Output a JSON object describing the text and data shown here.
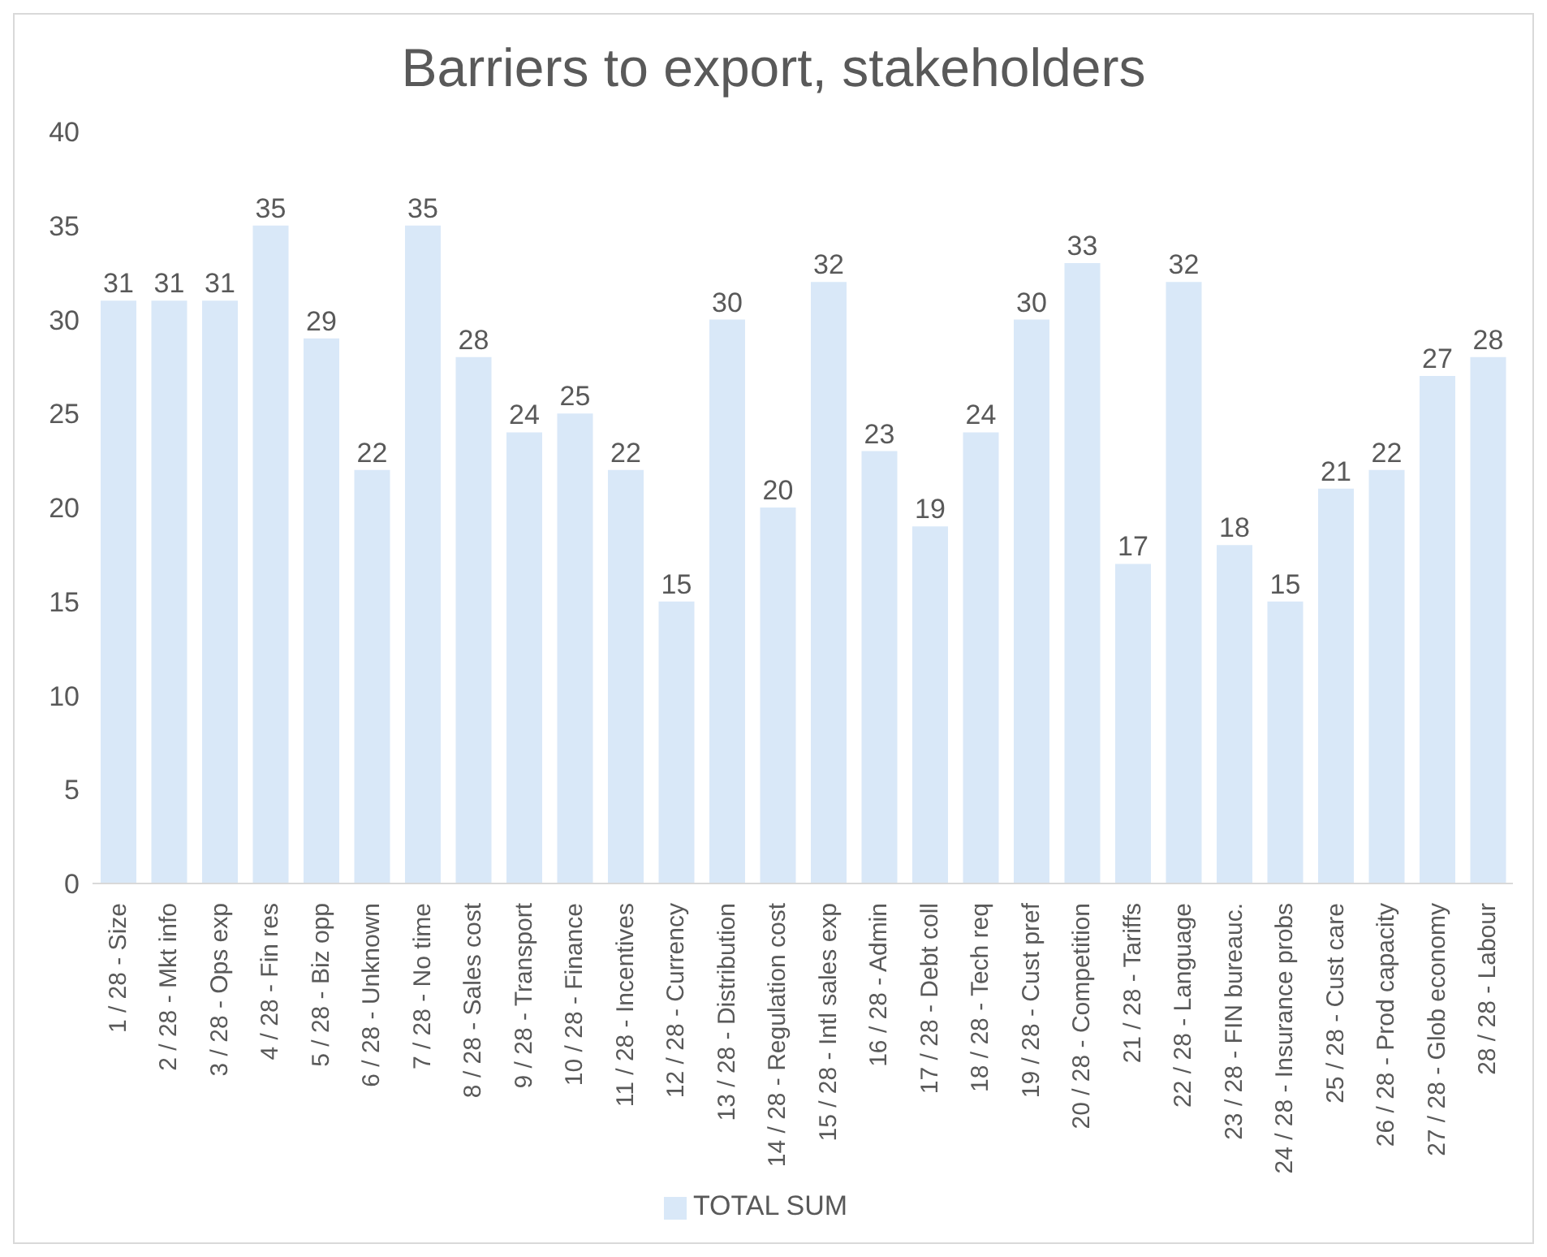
{
  "chart_data": {
    "type": "bar",
    "title": "Barriers to export, stakeholders",
    "categories": [
      "1 / 28 - Size",
      "2 / 28 - Mkt info",
      "3 / 28 - Ops exp",
      "4 / 28 - Fin res",
      "5 / 28 - Biz opp",
      "6 / 28 - Unknown",
      "7 / 28 - No time",
      "8 / 28 - Sales cost",
      "9 / 28 - Transport",
      "10 / 28 - Finance",
      "11 / 28 - Incentives",
      "12 / 28 - Currency",
      "13 / 28 - Distribution",
      "14 / 28 - Regulation cost",
      "15 / 28 - Intl sales exp",
      "16 / 28 - Admin",
      "17 / 28 - Debt coll",
      "18 / 28 - Tech req",
      "19 / 28 - Cust pref",
      "20 / 28 - Competition",
      "21 / 28 - Tariffs",
      "22 / 28 - Language",
      "23 / 28 - FIN bureauc.",
      "24 / 28 - Insurance probs",
      "25 / 28 - Cust care",
      "26 / 28 - Prod capacity",
      "27 / 28 - Glob economy",
      "28 / 28 - Labour"
    ],
    "series": [
      {
        "name": "TOTAL SUM",
        "color": "#d9e8f8",
        "values": [
          31,
          31,
          31,
          35,
          29,
          22,
          35,
          28,
          24,
          25,
          22,
          15,
          30,
          20,
          32,
          23,
          19,
          24,
          30,
          33,
          17,
          32,
          18,
          15,
          21,
          22,
          27,
          28
        ]
      }
    ],
    "ylim": [
      0,
      40
    ],
    "yticks": [
      0,
      5,
      10,
      15,
      20,
      25,
      30,
      35,
      40
    ],
    "grid": false,
    "legend": "bottom",
    "data_labels": true
  }
}
